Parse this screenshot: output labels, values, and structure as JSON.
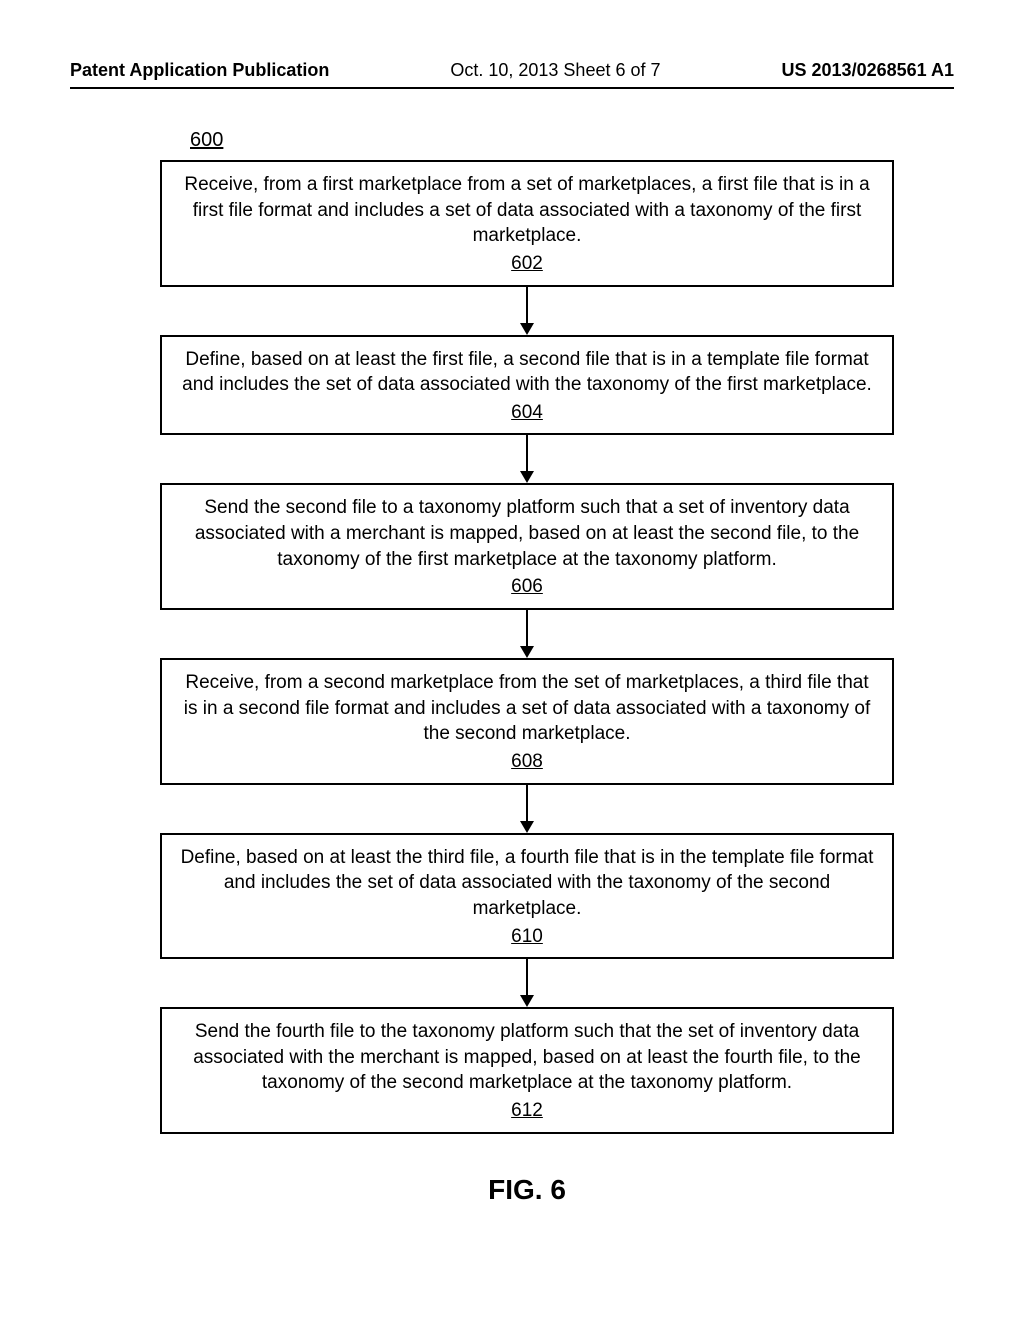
{
  "header": {
    "left": "Patent Application Publication",
    "mid": "Oct. 10, 2013  Sheet 6 of 7",
    "right": "US 2013/0268561 A1"
  },
  "figure": {
    "ref": "600",
    "caption": "FIG. 6",
    "box_border_color": "#000000",
    "box_border_width": 2,
    "background_color": "#ffffff",
    "text_color": "#000000",
    "font_family": "Arial",
    "font_size_header": 18,
    "font_size_box": 19,
    "font_size_caption": 28,
    "arrow_color": "#000000",
    "arrow_head_size": 12,
    "arrow_shaft_width": 2,
    "arrow_gap_height": 48,
    "box_max_width": 740,
    "steps": [
      {
        "num": "602",
        "text": "Receive, from a first marketplace from a set of marketplaces, a first file that is in a first file format and includes a set of data associated with a taxonomy of the first marketplace."
      },
      {
        "num": "604",
        "text": "Define, based on at least the first file, a second file that is in a template file format and includes the set of data associated with the taxonomy of the first marketplace."
      },
      {
        "num": "606",
        "text": "Send the second file to a taxonomy platform such that a set of inventory data associated with a merchant is mapped, based on at least the second file, to the taxonomy of the first marketplace at the taxonomy platform."
      },
      {
        "num": "608",
        "text": "Receive, from a second marketplace from the set of marketplaces, a third file that is in a second file format and includes a set of data associated with a taxonomy of the second marketplace."
      },
      {
        "num": "610",
        "text": "Define, based on at least the third file, a fourth file that is in the template file format and includes the set of data associated with the taxonomy of the second marketplace."
      },
      {
        "num": "612",
        "text": "Send the fourth file to the taxonomy platform such that the set of inventory data associated with the merchant is mapped, based on at least the fourth file, to the taxonomy of the second marketplace at the taxonomy platform."
      }
    ]
  }
}
